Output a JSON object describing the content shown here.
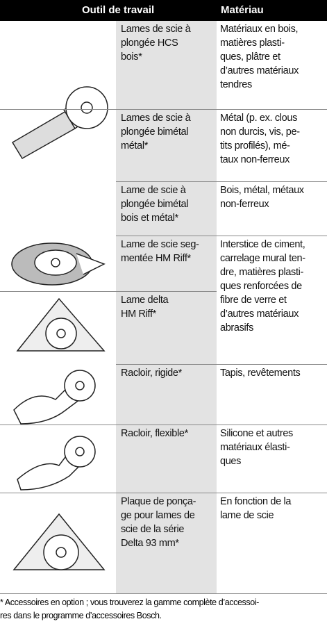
{
  "header": {
    "tool": "Outil de travail",
    "material": "Matériau"
  },
  "rows": [
    {
      "name": [
        "Lames de scie à",
        "plongée HCS",
        "bois*"
      ],
      "material": [
        "Matériaux en bois,",
        "matières plasti-",
        "ques, plâtre et",
        "d’autres matériaux",
        "tendres"
      ]
    },
    {
      "name": [
        "Lames de scie à",
        "plongée bimétal",
        "métal*"
      ],
      "material": [
        "Métal (p. ex. clous",
        "non durcis, vis, pe-",
        "tits profilés), mé-",
        "taux non-ferreux"
      ]
    },
    {
      "name": [
        "Lame de scie à",
        "plongée bimétal",
        "bois et métal*"
      ],
      "material": [
        "Bois, métal, métaux",
        "non-ferreux"
      ]
    },
    {
      "name": [
        "Lame de scie seg-",
        "mentée HM Riff*"
      ],
      "material": [
        "Interstice de ciment,",
        "carrelage mural ten-",
        "dre, matières plasti-",
        "ques renforcées de",
        "fibre de verre et",
        "d’autres matériaux",
        "abrasifs"
      ]
    },
    {
      "name": [
        "Lame delta",
        "HM Riff*"
      ]
    },
    {
      "name": [
        "Racloir, rigide*"
      ],
      "material": [
        "Tapis, revêtements"
      ]
    },
    {
      "name": [
        "Racloir, flexible*"
      ],
      "material": [
        "Silicone et autres",
        "matériaux élasti-",
        "ques"
      ]
    },
    {
      "name": [
        "Plaque de ponça-",
        "ge pour lames de",
        "scie de la série",
        "Delta 93 mm*"
      ],
      "material": [
        "En fonction de la",
        "lame de scie"
      ]
    }
  ],
  "footnote": [
    "* Accessoires en option ; vous trouverez la gamme complète d’accessoi-",
    "res dans le programme d’accessoires Bosch."
  ]
}
